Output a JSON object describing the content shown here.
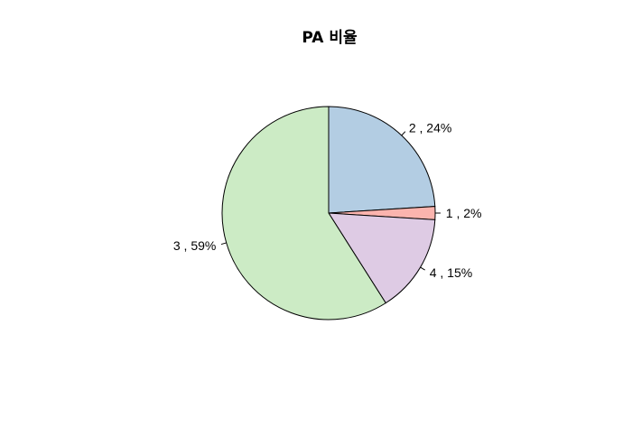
{
  "chart_data": {
    "type": "pie",
    "title": "PA 비율",
    "slices": [
      {
        "category": "1",
        "value": 2,
        "label": "1 , 2%",
        "color": "#FBB4AE"
      },
      {
        "category": "2",
        "value": 24,
        "label": "2 , 24%",
        "color": "#B3CDE3"
      },
      {
        "category": "3",
        "value": 59,
        "label": "3 , 59%",
        "color": "#CCEBC5"
      },
      {
        "category": "4",
        "value": 15,
        "label": "4 , 15%",
        "color": "#DECBE4"
      }
    ],
    "start_angle_deg": 0,
    "direction": "counter-clockwise",
    "legend": false
  }
}
